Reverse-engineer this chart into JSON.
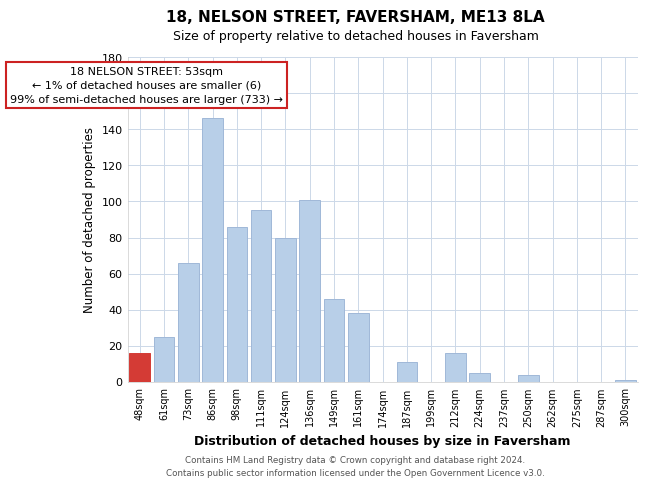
{
  "title": "18, NELSON STREET, FAVERSHAM, ME13 8LA",
  "subtitle": "Size of property relative to detached houses in Faversham",
  "xlabel": "Distribution of detached houses by size in Faversham",
  "ylabel": "Number of detached properties",
  "bar_labels": [
    "48sqm",
    "61sqm",
    "73sqm",
    "86sqm",
    "98sqm",
    "111sqm",
    "124sqm",
    "136sqm",
    "149sqm",
    "161sqm",
    "174sqm",
    "187sqm",
    "199sqm",
    "212sqm",
    "224sqm",
    "237sqm",
    "250sqm",
    "262sqm",
    "275sqm",
    "287sqm",
    "300sqm"
  ],
  "bar_values": [
    16,
    25,
    66,
    146,
    86,
    95,
    80,
    101,
    46,
    38,
    0,
    11,
    0,
    16,
    5,
    0,
    4,
    0,
    0,
    0,
    1
  ],
  "highlight_bar_index": 0,
  "highlight_color": "#d43b35",
  "normal_color": "#b8cfe8",
  "normal_edge_color": "#a0b8d8",
  "ylim": [
    0,
    180
  ],
  "yticks": [
    0,
    20,
    40,
    60,
    80,
    100,
    120,
    140,
    160,
    180
  ],
  "annotation_title": "18 NELSON STREET: 53sqm",
  "annotation_line1": "← 1% of detached houses are smaller (6)",
  "annotation_line2": "99% of semi-detached houses are larger (733) →",
  "annotation_box_color": "#ffffff",
  "annotation_box_edge": "#cc2222",
  "footer_line1": "Contains HM Land Registry data © Crown copyright and database right 2024.",
  "footer_line2": "Contains public sector information licensed under the Open Government Licence v3.0.",
  "bg_color": "#ffffff",
  "grid_color": "#ccd8e8"
}
